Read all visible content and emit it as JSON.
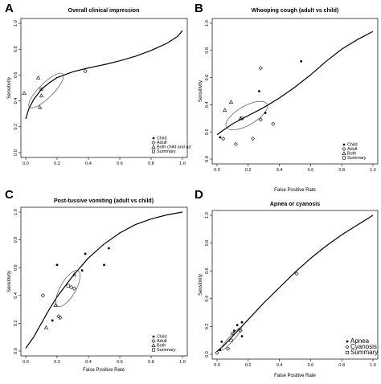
{
  "panels_letters": [
    "A",
    "B",
    "C",
    "D"
  ],
  "chart_data": [
    {
      "type": "scatter",
      "letter": "A",
      "title": "Overall clinical impression",
      "xlabel": "",
      "ylabel": "Sensitivity",
      "xlim": [
        0,
        1
      ],
      "ylim": [
        0,
        1
      ],
      "ticks": [
        "0.0",
        "0.2",
        "0.4",
        "0.6",
        "0.8",
        "1.0"
      ],
      "grid": false,
      "legend_position": "bottom-right",
      "legend": [
        "Child",
        "Adult",
        "Both child and ad",
        "Summary"
      ],
      "curve": [
        [
          0.0,
          0.26
        ],
        [
          0.02,
          0.34
        ],
        [
          0.05,
          0.41
        ],
        [
          0.1,
          0.49
        ],
        [
          0.15,
          0.54
        ],
        [
          0.2,
          0.58
        ],
        [
          0.3,
          0.625
        ],
        [
          0.4,
          0.655
        ],
        [
          0.5,
          0.68
        ],
        [
          0.6,
          0.71
        ],
        [
          0.7,
          0.745
        ],
        [
          0.8,
          0.79
        ],
        [
          0.9,
          0.845
        ],
        [
          0.97,
          0.9
        ],
        [
          1.0,
          0.945
        ]
      ],
      "summary_point": [
        0.1,
        0.49
      ],
      "ellipse": {
        "cx": 0.13,
        "cy": 0.48,
        "rx": 0.15,
        "ry": 0.055,
        "angle_deg": -45
      },
      "series": [
        {
          "name": "Child",
          "marker": "dot",
          "points": []
        },
        {
          "name": "Adult",
          "marker": "diamond",
          "points": [
            [
              0.38,
              0.63
            ]
          ]
        },
        {
          "name": "Both child and ad",
          "marker": "triangle",
          "points": [
            [
              -0.01,
              0.46
            ],
            [
              0.08,
              0.58
            ],
            [
              0.1,
              0.44
            ],
            [
              0.09,
              0.35
            ]
          ]
        }
      ]
    },
    {
      "type": "scatter",
      "letter": "B",
      "title": "Whooping cough (adult vs child)",
      "xlabel": "False Positive Rate",
      "ylabel": "Sensitivity",
      "xlim": [
        0,
        1
      ],
      "ylim": [
        0,
        1
      ],
      "ticks": [
        "0.0",
        "0.2",
        "0.4",
        "0.6",
        "0.8",
        "1.0"
      ],
      "grid": false,
      "legend_position": "bottom-right",
      "legend": [
        "Child",
        "Adult",
        "Both",
        "Summary"
      ],
      "curve": [
        [
          0.0,
          0.18
        ],
        [
          0.05,
          0.22
        ],
        [
          0.1,
          0.26
        ],
        [
          0.15,
          0.29
        ],
        [
          0.2,
          0.32
        ],
        [
          0.3,
          0.38
        ],
        [
          0.4,
          0.45
        ],
        [
          0.5,
          0.53
        ],
        [
          0.6,
          0.62
        ],
        [
          0.7,
          0.72
        ],
        [
          0.8,
          0.81
        ],
        [
          0.9,
          0.88
        ],
        [
          1.0,
          0.94
        ]
      ],
      "summary_point": [
        0.16,
        0.3
      ],
      "ellipse": {
        "cx": 0.19,
        "cy": 0.32,
        "rx": 0.15,
        "ry": 0.07,
        "angle_deg": -30
      },
      "series": [
        {
          "name": "Child",
          "marker": "dot",
          "points": [
            [
              0.54,
              0.72
            ],
            [
              0.27,
              0.5
            ],
            [
              0.31,
              0.34
            ],
            [
              0.02,
              0.16
            ]
          ]
        },
        {
          "name": "Adult",
          "marker": "diamond",
          "points": [
            [
              0.28,
              0.67
            ],
            [
              0.28,
              0.29
            ],
            [
              0.23,
              0.15
            ],
            [
              0.12,
              0.11
            ],
            [
              0.04,
              0.15
            ],
            [
              0.36,
              0.26
            ]
          ]
        },
        {
          "name": "Both",
          "marker": "triangle",
          "points": [
            [
              0.09,
              0.42
            ],
            [
              0.05,
              0.36
            ],
            [
              0.15,
              0.3
            ]
          ]
        }
      ]
    },
    {
      "type": "scatter",
      "letter": "C",
      "title": "Post-tussive vomiting (adult vs child)",
      "xlabel": "False Positive Rate",
      "ylabel": "Sensitivity",
      "xlim": [
        0,
        1
      ],
      "ylim": [
        0,
        1
      ],
      "ticks": [
        "0.0",
        "0.2",
        "0.4",
        "0.6",
        "0.8",
        "1.0"
      ],
      "grid": false,
      "legend_position": "bottom-right",
      "legend": [
        "Child",
        "Adult",
        "Both",
        "Summary"
      ],
      "curve": [
        [
          0.0,
          0.02
        ],
        [
          0.05,
          0.1
        ],
        [
          0.1,
          0.2
        ],
        [
          0.15,
          0.3
        ],
        [
          0.2,
          0.39
        ],
        [
          0.3,
          0.54
        ],
        [
          0.4,
          0.67
        ],
        [
          0.5,
          0.77
        ],
        [
          0.6,
          0.85
        ],
        [
          0.7,
          0.91
        ],
        [
          0.8,
          0.95
        ],
        [
          0.9,
          0.98
        ],
        [
          1.0,
          1.0
        ]
      ],
      "summary_point": [
        0.27,
        0.47
      ],
      "ellipse": {
        "cx": 0.27,
        "cy": 0.45,
        "rx": 0.13,
        "ry": 0.055,
        "angle_deg": -60
      },
      "series": [
        {
          "name": "Child",
          "marker": "dot",
          "points": [
            [
              0.2,
              0.62
            ],
            [
              0.38,
              0.7
            ],
            [
              0.53,
              0.74
            ],
            [
              0.5,
              0.62
            ],
            [
              0.36,
              0.58
            ],
            [
              0.17,
              0.22
            ]
          ]
        },
        {
          "name": "Adult",
          "marker": "diamond",
          "points": [
            [
              0.11,
              0.4
            ],
            [
              0.21,
              0.25
            ],
            [
              0.22,
              0.24
            ],
            [
              0.29,
              0.46
            ],
            [
              0.31,
              0.45
            ]
          ]
        },
        {
          "name": "Both",
          "marker": "triangle",
          "points": [
            [
              0.19,
              0.33
            ],
            [
              0.31,
              0.55
            ],
            [
              0.13,
              0.17
            ]
          ]
        }
      ]
    },
    {
      "type": "scatter",
      "letter": "D",
      "title": "Apnea or cyanosis",
      "xlabel": "False Positive Rate",
      "ylabel": "Sensitivity",
      "xlim": [
        0,
        1
      ],
      "ylim": [
        0,
        1
      ],
      "ticks": [
        "0.0",
        "0.2",
        "0.4",
        "0.6",
        "0.8",
        "1.0"
      ],
      "grid": false,
      "legend_position": "bottom-right",
      "legend": [
        "Apnea",
        "Cyanosis",
        "Summary"
      ],
      "curve": [
        [
          0.0,
          0.02
        ],
        [
          0.05,
          0.07
        ],
        [
          0.1,
          0.13
        ],
        [
          0.2,
          0.25
        ],
        [
          0.3,
          0.37
        ],
        [
          0.4,
          0.48
        ],
        [
          0.5,
          0.59
        ],
        [
          0.6,
          0.69
        ],
        [
          0.7,
          0.78
        ],
        [
          0.8,
          0.86
        ],
        [
          0.9,
          0.93
        ],
        [
          1.0,
          1.0
        ]
      ],
      "summary_point": [
        0.09,
        0.1
      ],
      "ellipse": {
        "cx": 0.09,
        "cy": 0.11,
        "rx": 0.1,
        "ry": 0.018,
        "angle_deg": -48
      },
      "series": [
        {
          "name": "Apnea",
          "marker": "dot",
          "points": [
            [
              0.03,
              0.09
            ],
            [
              0.11,
              0.17
            ],
            [
              0.13,
              0.21
            ],
            [
              0.16,
              0.23
            ],
            [
              0.16,
              0.13
            ],
            [
              0.02,
              0.03
            ]
          ]
        },
        {
          "name": "Cyanosis",
          "marker": "diamond",
          "points": [
            [
              0.51,
              0.58
            ],
            [
              0.1,
              0.15
            ],
            [
              0.0,
              0.01
            ],
            [
              0.07,
              0.04
            ],
            [
              0.15,
              0.17
            ]
          ]
        }
      ]
    }
  ]
}
